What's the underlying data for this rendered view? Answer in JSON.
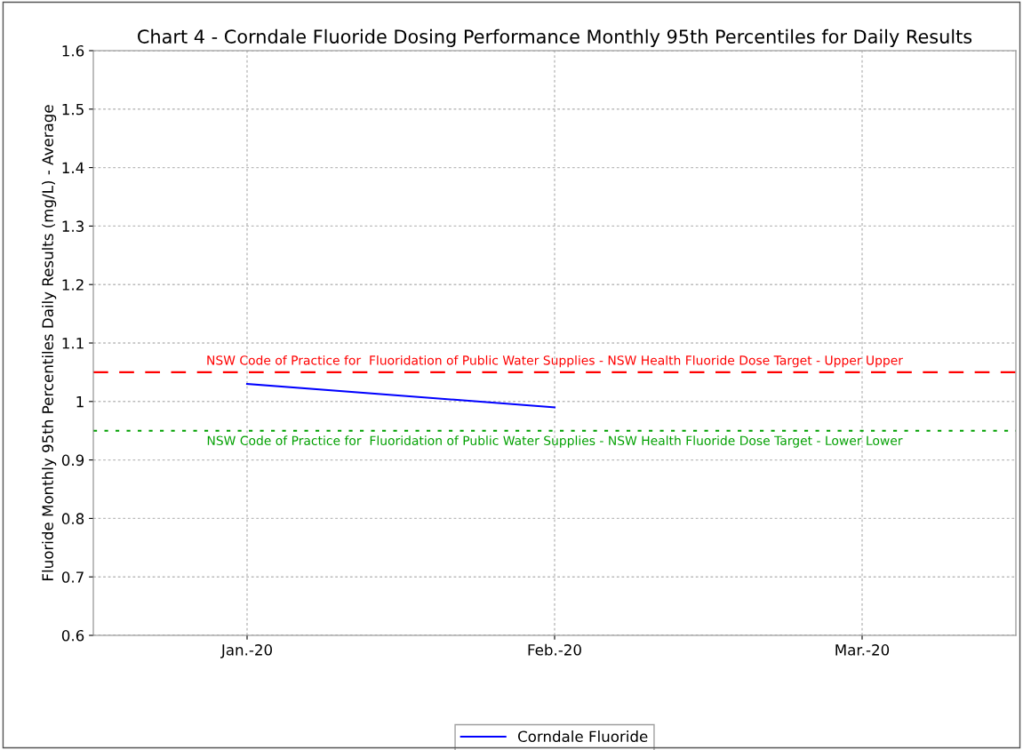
{
  "chart_data": {
    "type": "line",
    "title": "Chart 4 - Corndale Fluoride Dosing Performance Monthly 95th Percentiles for Daily Results",
    "ylabel": "Fluoride Monthly 95th Percentiles Daily Results (mg/L) - Average",
    "categories": [
      "Jan.-20",
      "Feb.-20",
      "Mar.-20"
    ],
    "series": [
      {
        "name": "Corndale Fluoride",
        "color": "#0000ff",
        "values": [
          1.03,
          0.99,
          null
        ]
      }
    ],
    "ylim": [
      0.6,
      1.6
    ],
    "yticks": [
      0.6,
      0.7,
      0.8,
      0.9,
      {
        "value": 1.0,
        "label": "1"
      },
      1.1,
      1.2,
      1.3,
      1.4,
      1.5,
      1.6
    ],
    "ref_lines": [
      {
        "axis": "y",
        "value": 1.05,
        "label": "NSW Code of Practice for  Fluoridation of Public Water Supplies - NSW Health Fluoride Dose Target - Upper Upper",
        "color": "#ff0000",
        "line_style": "dashed"
      },
      {
        "axis": "y",
        "value": 0.95,
        "label": "NSW Code of Practice for  Fluoridation of Public Water Supplies - NSW Health Fluoride Dose Target - Lower Lower",
        "color": "#00a000",
        "line_style": "dotted"
      }
    ],
    "grid": true,
    "legend": "bottom",
    "marker": "none",
    "line_style": "solid"
  }
}
